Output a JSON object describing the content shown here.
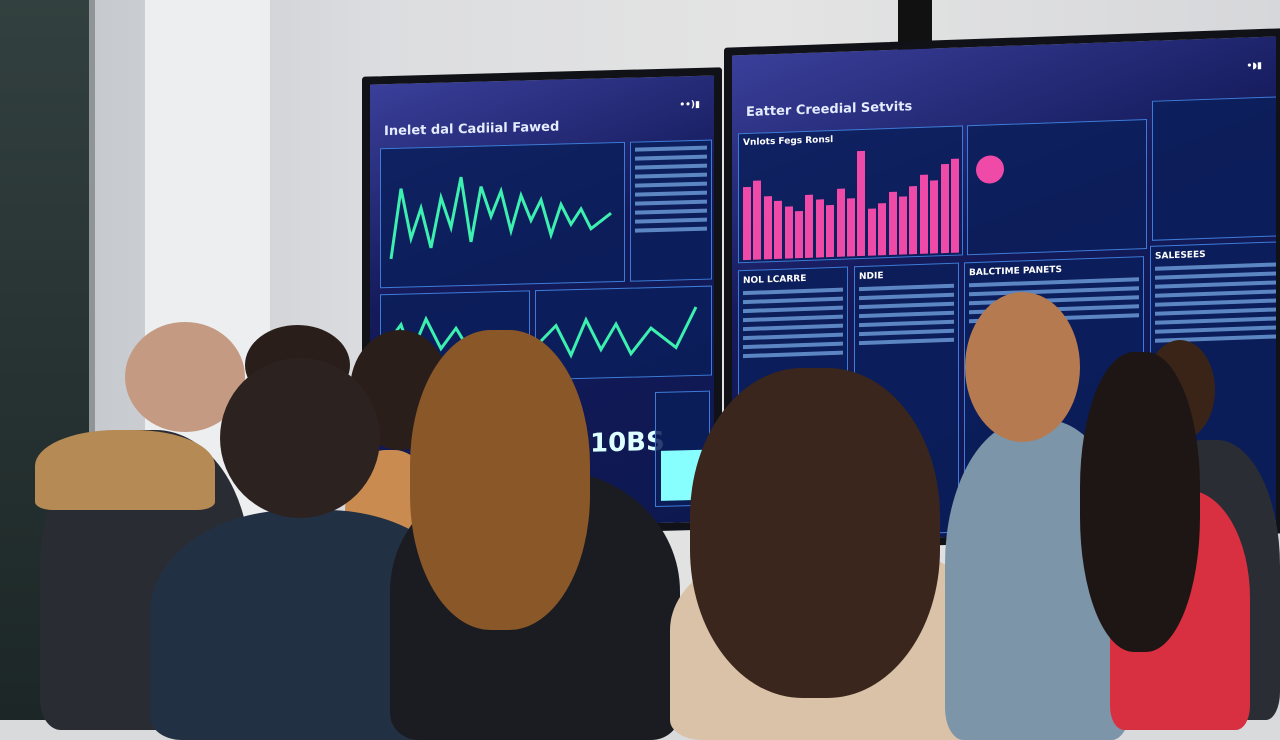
{
  "left_screen": {
    "title": "Inelet dal Cadiial Fawed",
    "big_text": "10BS",
    "status_icons": "••)▮",
    "accent": "#3cf0b0"
  },
  "right_screen": {
    "title": "Eatter Creedial Setvits",
    "chart_label": "Vnlots Fegs Ronsl",
    "panels": [
      "NOL LCARRE",
      "NDIE",
      "BALCTIME PANETS",
      "SALESEES"
    ],
    "status_icons": "•◗▮",
    "accent": "#f04aa8"
  },
  "colors": {
    "screen_bg": "#141a5a",
    "wall": "#dcdde0"
  }
}
